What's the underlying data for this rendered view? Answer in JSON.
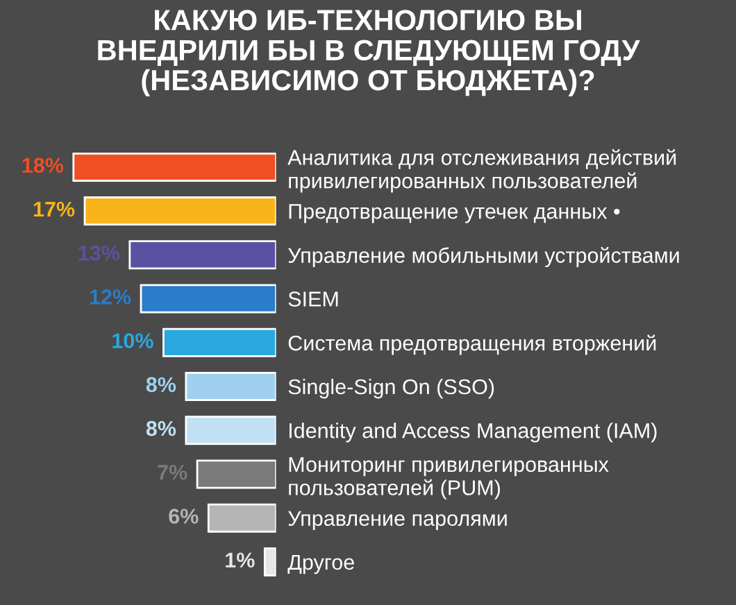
{
  "chart_data": {
    "type": "bar",
    "orientation": "horizontal",
    "title": "КАКУЮ ИБ-ТЕХНОЛОГИЮ ВЫ\nВНЕДРИЛИ БЫ В СЛЕДУЮЩЕМ ГОДУ\n(НЕЗАВИСИМО ОТ БЮДЖЕТА)?",
    "categories": [
      "Аналитика для отслеживания действий\nпривилегированных пользователей",
      "Предотвращение утечек данных •",
      "Управление мобильными устройствами",
      "SIEM",
      "Система предотвращения вторжений",
      "Single-Sign On (SSO)",
      "Identity and Access Management (IAM)",
      "Мониторинг привилегированных\nпользователей (PUM)",
      "Управление паролями",
      "Другое"
    ],
    "values": [
      18,
      17,
      13,
      12,
      10,
      8,
      8,
      7,
      6,
      1
    ],
    "colors": [
      "#f04e23",
      "#f9b31b",
      "#5b51a3",
      "#2b7cc9",
      "#2aa9e0",
      "#9fd0f0",
      "#c2e0f5",
      "#7a7a7a",
      "#b5b5b5",
      "#e6e6e6"
    ],
    "value_labels": [
      "18%",
      "17%",
      "13%",
      "12%",
      "10%",
      "8%",
      "8%",
      "7%",
      "6%",
      "1%"
    ],
    "grid": false,
    "legend": false
  }
}
